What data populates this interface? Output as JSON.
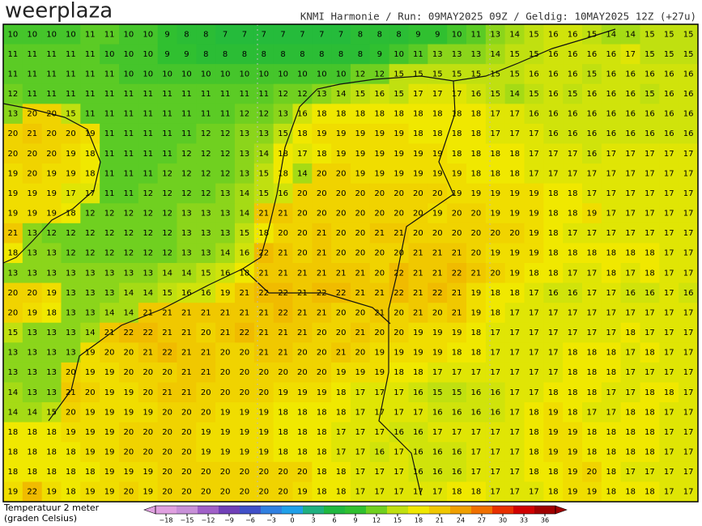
{
  "header": {
    "logo": "weerplaza",
    "info": "KNMI Harmonie / Run: 09MAY2025 09Z / Geldig: 10MAY2025 12Z (+27u)"
  },
  "legend": {
    "title": "Temperatuur 2 meter",
    "subtitle": "(graden Celsius)",
    "ticks": [
      {
        "value": -18,
        "label": "−18"
      },
      {
        "value": -15,
        "label": "−15"
      },
      {
        "value": -12,
        "label": "−12"
      },
      {
        "value": -9,
        "label": "−9"
      },
      {
        "value": -6,
        "label": "−6"
      },
      {
        "value": -3,
        "label": "−3"
      },
      0,
      3,
      6,
      9,
      12,
      15,
      18,
      21,
      24,
      27,
      30,
      33,
      36
    ],
    "colors": [
      "#e0a0e0",
      "#c890d8",
      "#a060c8",
      "#7040b8",
      "#4050c8",
      "#3080e0",
      "#20a0e8",
      "#20b080",
      "#20b840",
      "#30c030",
      "#70d020",
      "#c0e010",
      "#f0e800",
      "#f0c800",
      "#f0a000",
      "#f07000",
      "#e83000",
      "#d00000",
      "#a00000"
    ]
  },
  "map": {
    "grid": [
      [
        10,
        10,
        10,
        10,
        11,
        11,
        10,
        10,
        9,
        8,
        8,
        7,
        7,
        7,
        7,
        7,
        7,
        7,
        8,
        8,
        8,
        9,
        9,
        10,
        11,
        13,
        14,
        15,
        16,
        16,
        15,
        14,
        14,
        15,
        15,
        15
      ],
      [
        11,
        11,
        11,
        11,
        11,
        10,
        10,
        10,
        9,
        9,
        8,
        8,
        8,
        8,
        8,
        8,
        8,
        8,
        8,
        9,
        10,
        11,
        13,
        13,
        13,
        14,
        15,
        15,
        16,
        16,
        16,
        16,
        17,
        15,
        15,
        15
      ],
      [
        11,
        11,
        11,
        11,
        11,
        11,
        10,
        10,
        10,
        10,
        10,
        10,
        10,
        10,
        10,
        10,
        10,
        10,
        12,
        12,
        15,
        15,
        15,
        15,
        15,
        15,
        15,
        16,
        16,
        16,
        15,
        16,
        16,
        16,
        16,
        16
      ],
      [
        12,
        11,
        11,
        11,
        11,
        11,
        11,
        11,
        11,
        11,
        11,
        11,
        11,
        11,
        12,
        12,
        13,
        14,
        15,
        16,
        15,
        17,
        17,
        17,
        16,
        15,
        14,
        15,
        16,
        15,
        16,
        16,
        16,
        15,
        16,
        16
      ],
      [
        13,
        20,
        20,
        15,
        11,
        11,
        11,
        11,
        11,
        11,
        11,
        11,
        12,
        12,
        13,
        16,
        18,
        18,
        18,
        18,
        18,
        18,
        18,
        18,
        18,
        17,
        17,
        16,
        16,
        16,
        16,
        16,
        16,
        16,
        16,
        16
      ],
      [
        20,
        21,
        20,
        20,
        19,
        11,
        11,
        11,
        11,
        11,
        12,
        12,
        13,
        13,
        15,
        18,
        19,
        19,
        19,
        19,
        19,
        18,
        18,
        18,
        18,
        17,
        17,
        17,
        16,
        16,
        16,
        16,
        16,
        16,
        16,
        16
      ],
      [
        20,
        20,
        20,
        19,
        18,
        11,
        11,
        11,
        11,
        12,
        12,
        12,
        13,
        14,
        18,
        17,
        18,
        19,
        19,
        19,
        19,
        19,
        19,
        18,
        18,
        18,
        18,
        17,
        17,
        17,
        16,
        17,
        17,
        17,
        17,
        17
      ],
      [
        19,
        20,
        19,
        19,
        18,
        11,
        11,
        11,
        12,
        12,
        12,
        12,
        13,
        15,
        18,
        14,
        20,
        20,
        19,
        19,
        19,
        19,
        19,
        19,
        18,
        18,
        18,
        17,
        17,
        17,
        17,
        17,
        17,
        17,
        17,
        17
      ],
      [
        19,
        19,
        19,
        17,
        17,
        11,
        11,
        12,
        12,
        12,
        12,
        13,
        14,
        15,
        16,
        20,
        20,
        20,
        20,
        20,
        20,
        20,
        20,
        19,
        19,
        19,
        19,
        19,
        18,
        18,
        17,
        17,
        17,
        17,
        17,
        17
      ],
      [
        19,
        19,
        19,
        18,
        12,
        12,
        12,
        12,
        12,
        13,
        13,
        13,
        14,
        21,
        21,
        20,
        20,
        20,
        20,
        20,
        20,
        20,
        19,
        20,
        20,
        19,
        19,
        19,
        18,
        18,
        19,
        17,
        17,
        17,
        17,
        17
      ],
      [
        21,
        13,
        12,
        12,
        12,
        12,
        12,
        12,
        12,
        13,
        13,
        13,
        15,
        18,
        20,
        20,
        21,
        20,
        20,
        21,
        21,
        20,
        20,
        20,
        20,
        20,
        20,
        19,
        18,
        17,
        17,
        17,
        17,
        17,
        17,
        17
      ],
      [
        18,
        13,
        13,
        12,
        12,
        12,
        12,
        12,
        12,
        13,
        13,
        14,
        16,
        22,
        21,
        20,
        21,
        20,
        20,
        20,
        20,
        21,
        21,
        21,
        20,
        19,
        19,
        19,
        18,
        18,
        18,
        18,
        18,
        18,
        17,
        17
      ],
      [
        13,
        13,
        13,
        13,
        13,
        13,
        13,
        13,
        14,
        14,
        15,
        16,
        18,
        21,
        21,
        21,
        21,
        21,
        21,
        20,
        22,
        21,
        21,
        22,
        21,
        20,
        19,
        18,
        18,
        17,
        17,
        18,
        17,
        18,
        17,
        17
      ],
      [
        20,
        20,
        19,
        13,
        13,
        13,
        14,
        14,
        15,
        16,
        16,
        19,
        21,
        22,
        22,
        21,
        22,
        22,
        21,
        21,
        22,
        21,
        22,
        21,
        19,
        18,
        18,
        17,
        16,
        16,
        17,
        17,
        16,
        16,
        17,
        16
      ],
      [
        20,
        19,
        18,
        13,
        13,
        14,
        14,
        21,
        21,
        21,
        21,
        21,
        21,
        21,
        22,
        21,
        21,
        20,
        20,
        21,
        20,
        21,
        20,
        21,
        19,
        18,
        17,
        17,
        17,
        17,
        17,
        17,
        17,
        17,
        17,
        17
      ],
      [
        15,
        13,
        13,
        13,
        14,
        21,
        22,
        22,
        21,
        21,
        20,
        21,
        22,
        21,
        21,
        21,
        20,
        20,
        21,
        20,
        20,
        19,
        19,
        19,
        18,
        17,
        17,
        17,
        17,
        17,
        17,
        17,
        18,
        17,
        17,
        17
      ],
      [
        13,
        13,
        13,
        13,
        19,
        20,
        20,
        21,
        22,
        21,
        21,
        20,
        20,
        21,
        21,
        20,
        20,
        21,
        20,
        19,
        19,
        19,
        19,
        18,
        18,
        17,
        17,
        17,
        17,
        18,
        18,
        18,
        17,
        18,
        17,
        17
      ],
      [
        13,
        13,
        13,
        20,
        19,
        19,
        20,
        20,
        20,
        21,
        21,
        20,
        20,
        20,
        20,
        20,
        20,
        19,
        19,
        19,
        18,
        18,
        17,
        17,
        17,
        17,
        17,
        17,
        17,
        18,
        18,
        18,
        17,
        17,
        17,
        17
      ],
      [
        14,
        13,
        13,
        21,
        20,
        19,
        19,
        20,
        21,
        21,
        20,
        20,
        20,
        20,
        19,
        19,
        19,
        18,
        17,
        17,
        17,
        16,
        15,
        15,
        16,
        16,
        17,
        17,
        18,
        18,
        18,
        17,
        17,
        18,
        18,
        17
      ],
      [
        14,
        14,
        15,
        20,
        19,
        19,
        19,
        19,
        20,
        20,
        20,
        19,
        19,
        19,
        18,
        18,
        18,
        18,
        17,
        17,
        17,
        17,
        16,
        16,
        16,
        16,
        17,
        18,
        19,
        18,
        17,
        17,
        18,
        18,
        17,
        17
      ],
      [
        18,
        18,
        18,
        19,
        19,
        19,
        20,
        20,
        20,
        20,
        19,
        19,
        19,
        19,
        18,
        18,
        18,
        17,
        17,
        17,
        16,
        16,
        17,
        17,
        17,
        17,
        17,
        18,
        19,
        19,
        18,
        18,
        18,
        18,
        17,
        17
      ],
      [
        18,
        18,
        18,
        18,
        19,
        19,
        20,
        20,
        20,
        20,
        19,
        19,
        19,
        19,
        18,
        18,
        18,
        17,
        17,
        16,
        17,
        16,
        16,
        16,
        17,
        17,
        17,
        18,
        19,
        19,
        18,
        18,
        18,
        18,
        17,
        17
      ],
      [
        18,
        18,
        18,
        18,
        18,
        19,
        19,
        19,
        20,
        20,
        20,
        20,
        20,
        20,
        20,
        20,
        18,
        18,
        17,
        17,
        17,
        16,
        16,
        16,
        17,
        17,
        17,
        18,
        18,
        19,
        20,
        18,
        17,
        17,
        17,
        17
      ],
      [
        19,
        22,
        19,
        18,
        19,
        19,
        20,
        19,
        20,
        20,
        20,
        20,
        20,
        20,
        20,
        19,
        18,
        18,
        17,
        17,
        17,
        17,
        17,
        18,
        18,
        17,
        17,
        17,
        18,
        19,
        19,
        18,
        18,
        18,
        17,
        17
      ]
    ]
  }
}
